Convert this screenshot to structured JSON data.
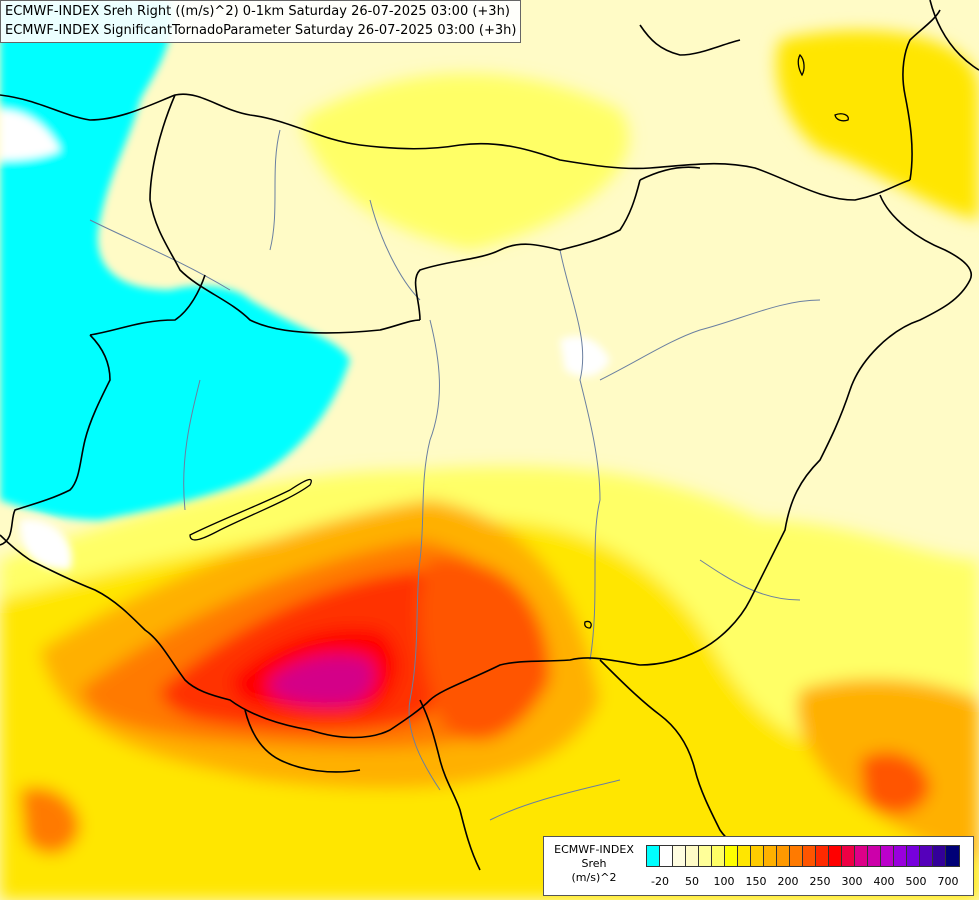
{
  "title": {
    "line1": "ECMWF-INDEX Sreh Right ((m/s)^2) 0-1km Saturday 26-07-2025 03:00 (+3h)",
    "line2": "ECMWF-INDEX SignificantTornadoParameter Saturday 26-07-2025 03:00 (+3h)"
  },
  "legend": {
    "line1": "ECMWF-INDEX",
    "line2": "Sreh",
    "line3": "(m/s)^2",
    "colors": [
      "#00ffff",
      "#ffffff",
      "#fffde0",
      "#fffbc6",
      "#ffff99",
      "#ffff66",
      "#ffff00",
      "#ffe600",
      "#ffcc00",
      "#ffb000",
      "#ff9900",
      "#ff7a00",
      "#ff5500",
      "#ff2a00",
      "#ff0000",
      "#ee0044",
      "#dd0088",
      "#cc00aa",
      "#bb00cc",
      "#9900dd",
      "#7700dd",
      "#5500bb",
      "#330099",
      "#000077"
    ],
    "ticks": [
      {
        "label": "-20",
        "index": 1
      },
      {
        "label": "50",
        "index": 3
      },
      {
        "label": "100",
        "index": 5
      },
      {
        "label": "150",
        "index": 7
      },
      {
        "label": "200",
        "index": 9
      },
      {
        "label": "250",
        "index": 11
      },
      {
        "label": "300",
        "index": 13
      },
      {
        "label": "400",
        "index": 15
      },
      {
        "label": "500",
        "index": 17
      },
      {
        "label": "700",
        "index": 19
      }
    ]
  }
}
